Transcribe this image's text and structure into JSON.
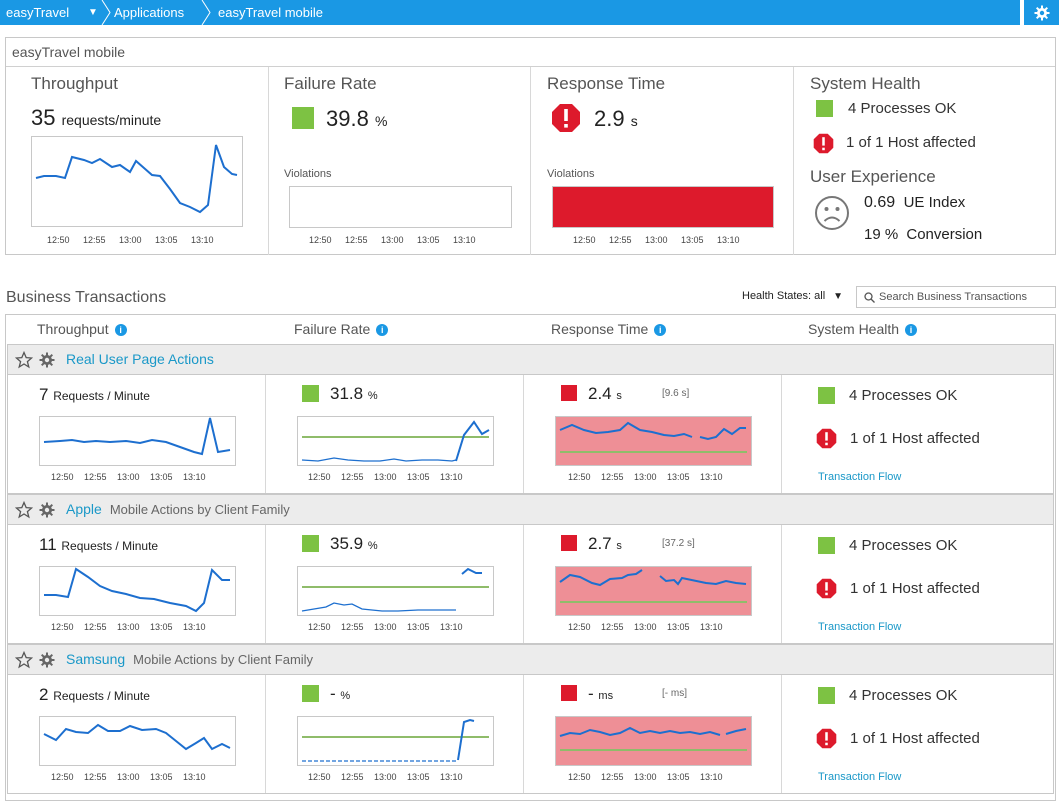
{
  "breadcrumb": [
    "easyTravel",
    "Applications",
    "easyTravel mobile"
  ],
  "colors": {
    "accent": "#1a98e4",
    "ok": "#7dc243",
    "error": "#dd1a2c",
    "violation_fill": "#ee8f96",
    "line": "#1d6fcf",
    "baseline": "#8fbc6a"
  },
  "summary": {
    "title": "easyTravel mobile",
    "throughput": {
      "label": "Throughput",
      "value": "35",
      "unit": "requests/minute"
    },
    "failure": {
      "label": "Failure Rate",
      "value": "39.8",
      "unit": "%",
      "violations": "Violations"
    },
    "response": {
      "label": "Response Time",
      "value": "2.9",
      "unit": "s",
      "violations": "Violations"
    },
    "health": {
      "label": "System Health",
      "processes": "4 Processes OK",
      "hosts": "1 of 1 Host affected"
    },
    "ux": {
      "label": "User Experience",
      "index_value": "0.69",
      "index_label": "UE Index",
      "conv_value": "19 %",
      "conv_label": "Conversion"
    },
    "ticks": [
      "12:50",
      "12:55",
      "13:00",
      "13:05",
      "13:10"
    ]
  },
  "bt": {
    "title": "Business Transactions",
    "health_filter": "Health States: all",
    "search_placeholder": "Search Business Transactions",
    "columns": [
      "Throughput",
      "Failure Rate",
      "Response Time",
      "System Health"
    ]
  },
  "groups": [
    {
      "name": "Real User Page Actions",
      "sub": "",
      "tp_value": "7",
      "tp_unit": "Requests / Minute",
      "fail_value": "31.8",
      "fail_unit": "%",
      "rt_value": "2.4",
      "rt_unit": "s",
      "rt_bracket": "[9.6 s]",
      "processes": "4 Processes OK",
      "hosts": "1 of 1 Host affected",
      "flow": "Transaction Flow"
    },
    {
      "name": "Apple",
      "sub": "Mobile Actions by Client Family",
      "tp_value": "11",
      "tp_unit": "Requests / Minute",
      "fail_value": "35.9",
      "fail_unit": "%",
      "rt_value": "2.7",
      "rt_unit": "s",
      "rt_bracket": "[37.2 s]",
      "processes": "4 Processes OK",
      "hosts": "1 of 1 Host affected",
      "flow": "Transaction Flow"
    },
    {
      "name": "Samsung",
      "sub": "Mobile Actions by Client Family",
      "tp_value": "2",
      "tp_unit": "Requests / Minute",
      "fail_value": "-",
      "fail_unit": "%",
      "rt_value": "-",
      "rt_unit": "ms",
      "rt_bracket": "[- ms]",
      "processes": "4 Processes OK",
      "hosts": "1 of 1 Host affected",
      "flow": "Transaction Flow"
    }
  ]
}
